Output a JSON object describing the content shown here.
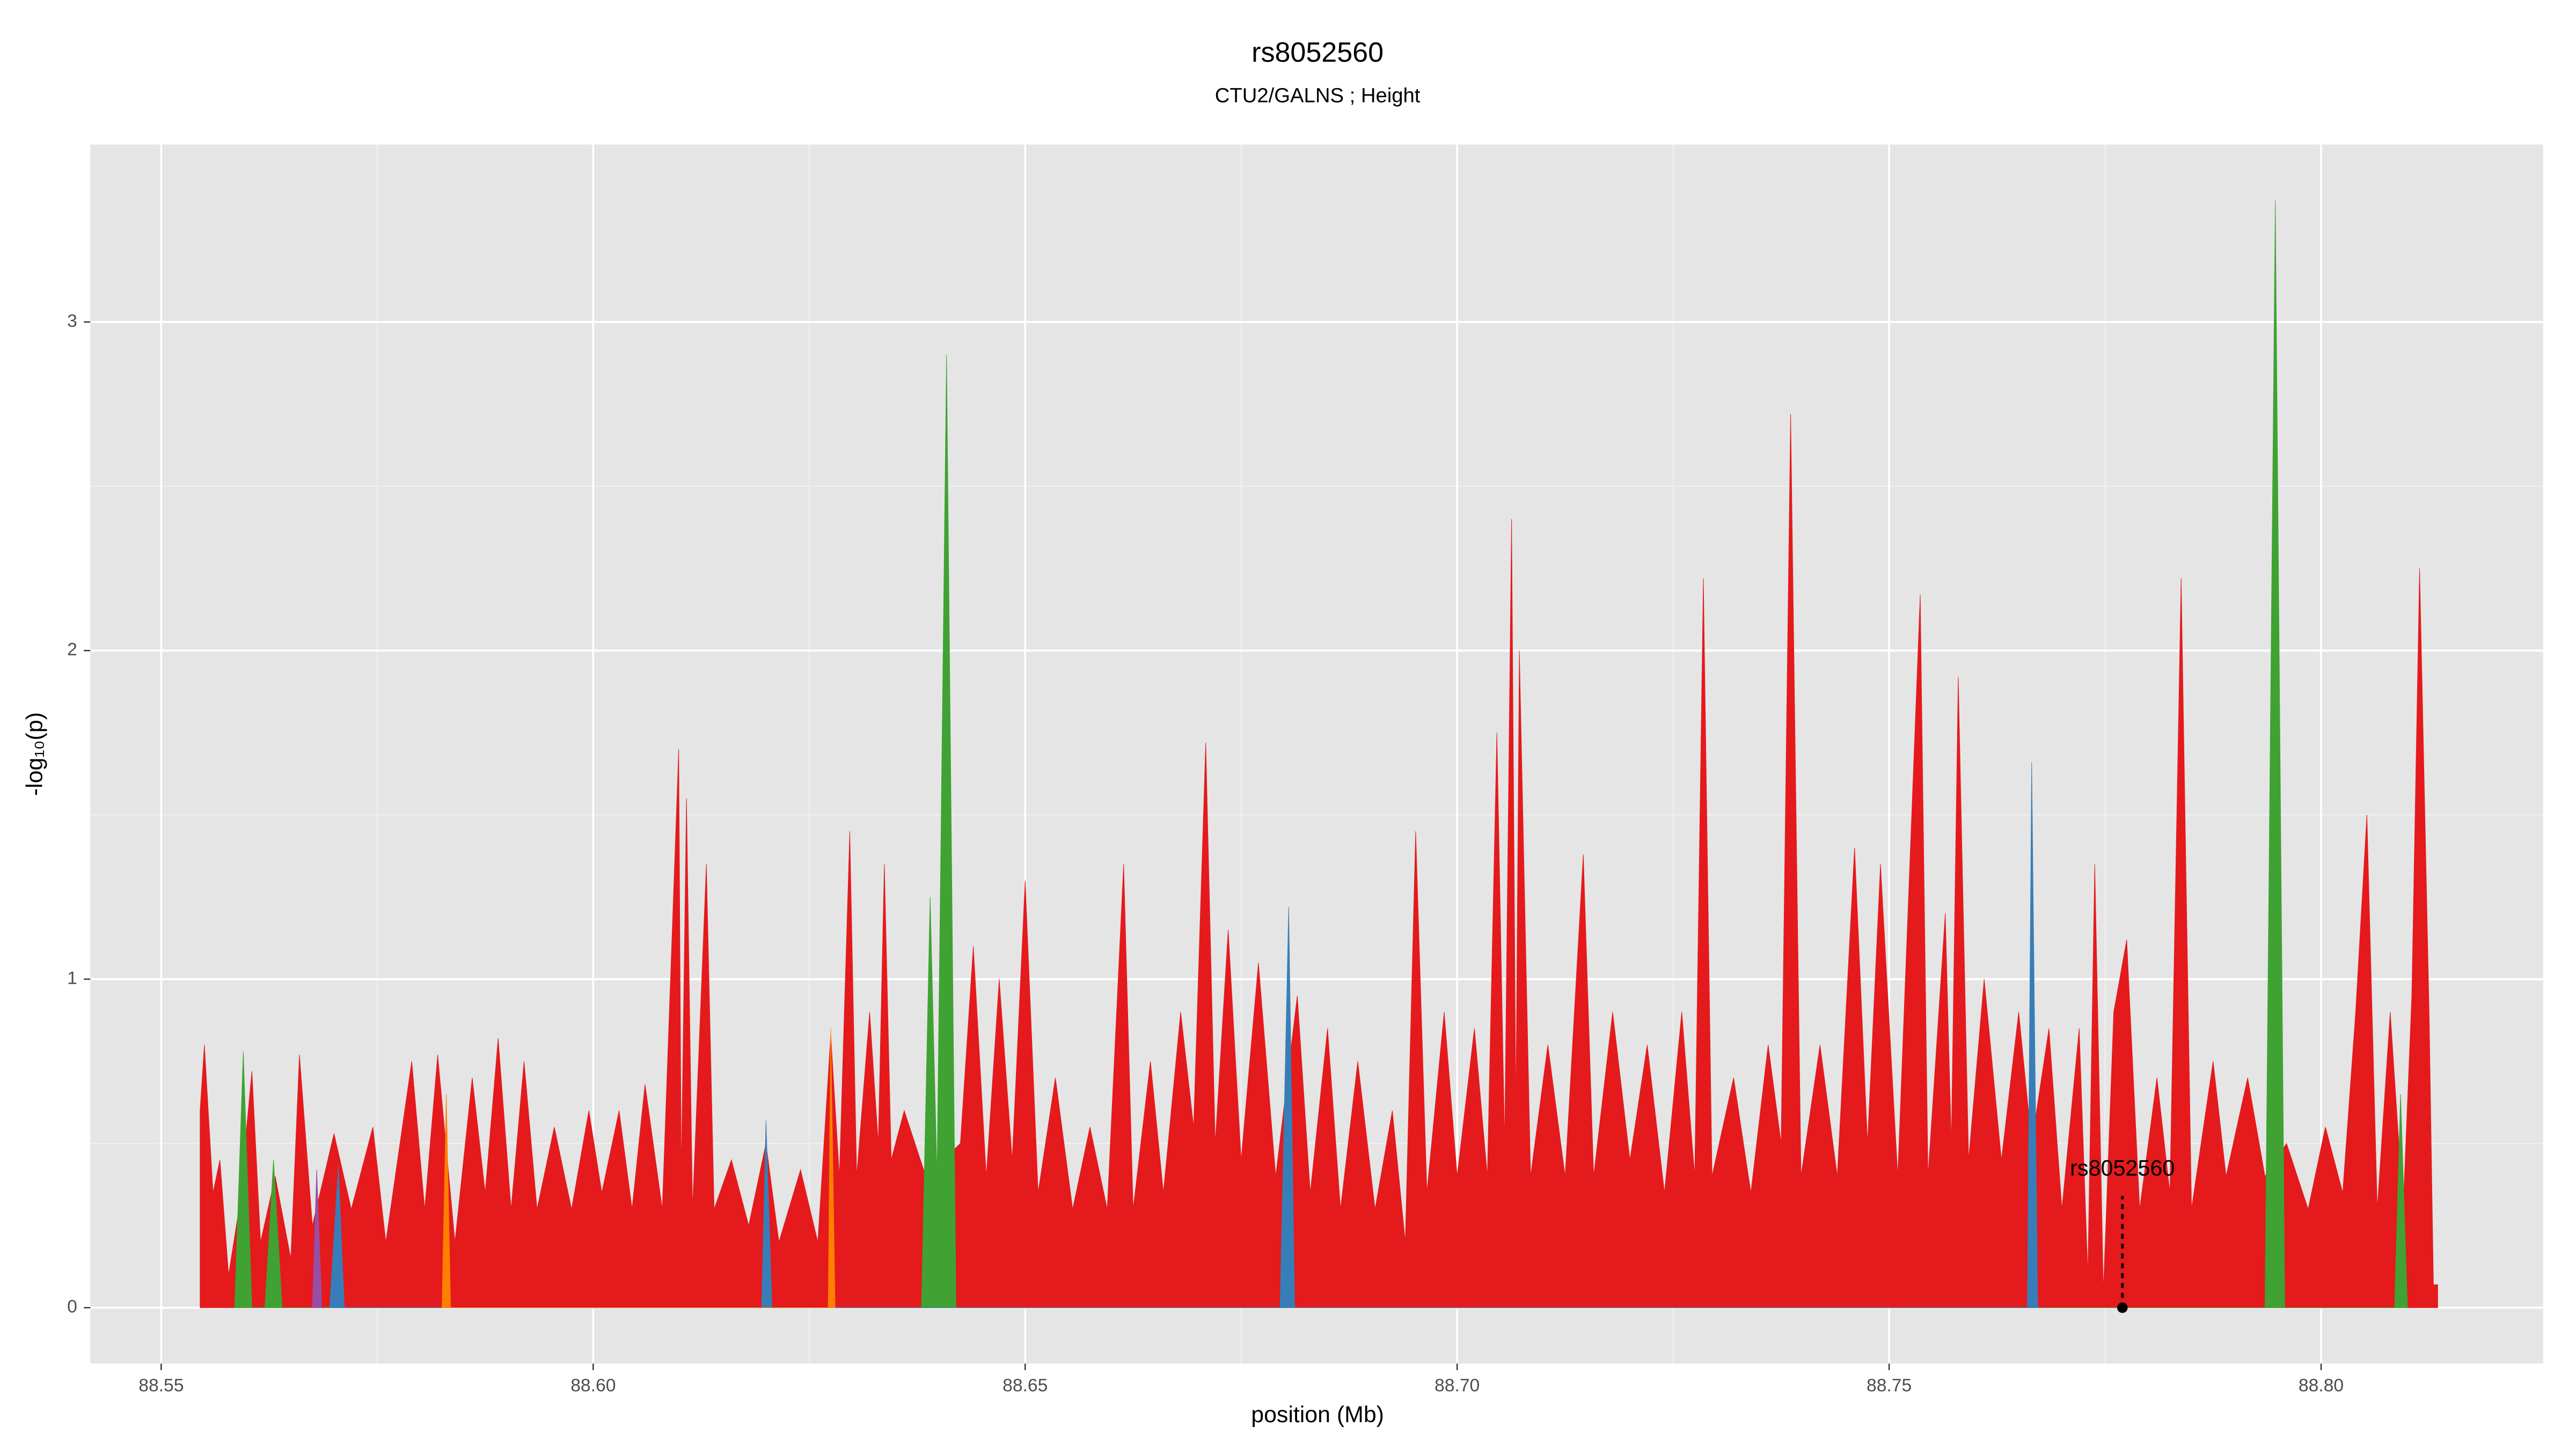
{
  "chart_data": {
    "type": "area",
    "title": "rs8052560",
    "subtitle": "CTU2/GALNS ; Height",
    "x_label": "position (Mb)",
    "y_label": "-log₁₀(p)",
    "xlim": [
      88.5418,
      88.8257
    ],
    "ylim": [
      -0.17,
      3.54
    ],
    "xticks": [
      88.55,
      {
        "value": 88.6,
        "label": "88.60"
      },
      88.65,
      {
        "value": 88.7,
        "label": "88.70"
      },
      88.75,
      {
        "value": 88.8,
        "label": "88.80"
      }
    ],
    "yticks": [
      0,
      1,
      2,
      3
    ],
    "x_minor_breaks": [
      88.575,
      88.625,
      88.675,
      88.725,
      88.775
    ],
    "y_minor_breaks": [
      0.5,
      1.5,
      2.5
    ],
    "grid": true,
    "series": [
      {
        "color": "#e41a1c",
        "x": [
          88.5545,
          88.555,
          88.556,
          88.5568,
          88.5578,
          88.559,
          88.5605,
          88.5615,
          88.5632,
          88.565,
          88.566,
          88.5675,
          88.57,
          88.572,
          88.5745,
          88.576,
          88.579,
          88.5805,
          88.582,
          88.584,
          88.586,
          88.5875,
          88.589,
          88.5905,
          88.592,
          88.5935,
          88.5955,
          88.5975,
          88.5995,
          88.601,
          88.603,
          88.6045,
          88.606,
          88.608,
          88.6099,
          88.6102,
          88.6108,
          88.6115,
          88.6131,
          88.614,
          88.616,
          88.618,
          88.62,
          88.6215,
          88.624,
          88.626,
          88.6275,
          88.6285,
          88.6297,
          88.6305,
          88.632,
          88.633,
          88.6337,
          88.6345,
          88.636,
          88.6385,
          88.6425,
          88.644,
          88.6455,
          88.647,
          88.6485,
          88.65,
          88.6515,
          88.6535,
          88.6555,
          88.6575,
          88.6595,
          88.6614,
          88.6625,
          88.6645,
          88.666,
          88.668,
          88.6695,
          88.6709,
          88.672,
          88.6735,
          88.675,
          88.677,
          88.679,
          88.6815,
          88.683,
          88.685,
          88.6865,
          88.6885,
          88.6905,
          88.6925,
          88.694,
          88.6952,
          88.6965,
          88.6985,
          88.7,
          88.702,
          88.7035,
          88.7046,
          88.7055,
          88.7063,
          88.7068,
          88.7072,
          88.7085,
          88.7105,
          88.7125,
          88.7146,
          88.7158,
          88.718,
          88.72,
          88.722,
          88.724,
          88.726,
          88.7275,
          88.7285,
          88.7295,
          88.732,
          88.734,
          88.736,
          88.7375,
          88.7386,
          88.7398,
          88.742,
          88.744,
          88.746,
          88.7475,
          88.749,
          88.751,
          88.7536,
          88.7545,
          88.7565,
          88.7572,
          88.758,
          88.7592,
          88.761,
          88.763,
          88.765,
          88.7665,
          88.7685,
          88.77,
          88.772,
          88.773,
          88.7738,
          88.7748,
          88.776,
          88.7775,
          88.779,
          88.781,
          88.7825,
          88.7838,
          88.785,
          88.7875,
          88.789,
          88.7915,
          88.7935,
          88.796,
          88.7985,
          88.8005,
          88.8025,
          88.804,
          88.8053,
          88.8065,
          88.808,
          88.8095,
          88.8105,
          88.8114,
          88.8125,
          88.813,
          88.8135
        ],
        "values": [
          0.6,
          0.8,
          0.35,
          0.45,
          0.1,
          0.3,
          0.72,
          0.2,
          0.4,
          0.15,
          0.77,
          0.25,
          0.53,
          0.3,
          0.55,
          0.2,
          0.75,
          0.3,
          0.77,
          0.2,
          0.7,
          0.35,
          0.82,
          0.3,
          0.75,
          0.3,
          0.55,
          0.3,
          0.6,
          0.35,
          0.6,
          0.3,
          0.68,
          0.3,
          1.7,
          0.4,
          1.55,
          0.3,
          1.35,
          0.3,
          0.45,
          0.25,
          0.5,
          0.2,
          0.42,
          0.2,
          0.83,
          0.4,
          1.45,
          0.4,
          0.9,
          0.5,
          1.35,
          0.45,
          0.6,
          0.4,
          0.5,
          1.1,
          0.4,
          1.0,
          0.45,
          1.3,
          0.35,
          0.7,
          0.3,
          0.55,
          0.3,
          1.35,
          0.3,
          0.75,
          0.35,
          0.9,
          0.55,
          1.72,
          0.5,
          1.15,
          0.45,
          1.05,
          0.4,
          0.95,
          0.35,
          0.85,
          0.3,
          0.75,
          0.3,
          0.6,
          0.2,
          1.45,
          0.35,
          0.9,
          0.4,
          0.85,
          0.4,
          1.75,
          0.5,
          2.4,
          0.6,
          2.0,
          0.4,
          0.8,
          0.4,
          1.38,
          0.4,
          0.9,
          0.45,
          0.8,
          0.35,
          0.9,
          0.4,
          2.22,
          0.4,
          0.7,
          0.35,
          0.8,
          0.5,
          2.72,
          0.4,
          0.8,
          0.4,
          1.4,
          0.5,
          1.35,
          0.4,
          2.17,
          0.4,
          1.2,
          0.5,
          1.92,
          0.45,
          1.0,
          0.45,
          0.9,
          0.5,
          0.85,
          0.3,
          0.85,
          0.1,
          1.35,
          0.05,
          0.9,
          1.12,
          0.3,
          0.7,
          0.35,
          2.22,
          0.3,
          0.75,
          0.4,
          0.7,
          0.4,
          0.5,
          0.3,
          0.55,
          0.35,
          0.9,
          1.5,
          0.3,
          0.9,
          0.3,
          0.95,
          2.25,
          0.9,
          0.07,
          0.07
        ]
      },
      {
        "color": "#3fa233",
        "x": [
          88.5585,
          88.5595,
          88.5605,
          88.562,
          88.563,
          88.564,
          88.638,
          88.639,
          88.6398,
          88.6409,
          88.642,
          88.7935,
          88.7947,
          88.7958,
          88.8085,
          88.8092,
          88.81
        ],
        "values": [
          0,
          0.78,
          0,
          0,
          0.45,
          0,
          0,
          1.25,
          0.4,
          2.9,
          0,
          0,
          3.37,
          0,
          0,
          0.65,
          0
        ]
      },
      {
        "color": "#377eb8",
        "x": [
          88.5695,
          88.5705,
          88.5712,
          88.6195,
          88.62,
          88.6207,
          88.6795,
          88.6805,
          88.6812,
          88.766,
          88.7665,
          88.7672
        ],
        "values": [
          0,
          0.43,
          0,
          0,
          0.57,
          0,
          0,
          1.22,
          0,
          0,
          1.66,
          0
        ]
      },
      {
        "color": "#ff7f00",
        "x": [
          88.5825,
          88.583,
          88.5835,
          88.6272,
          88.6275,
          88.628
        ],
        "values": [
          0,
          0.65,
          0,
          0,
          0.85,
          0
        ]
      },
      {
        "color": "#984ea3",
        "x": [
          88.5675,
          88.568,
          88.5686
        ],
        "values": [
          0,
          0.42,
          0
        ]
      }
    ],
    "annotation": {
      "text": "rs8052560",
      "x": 88.777,
      "y": 0
    }
  }
}
